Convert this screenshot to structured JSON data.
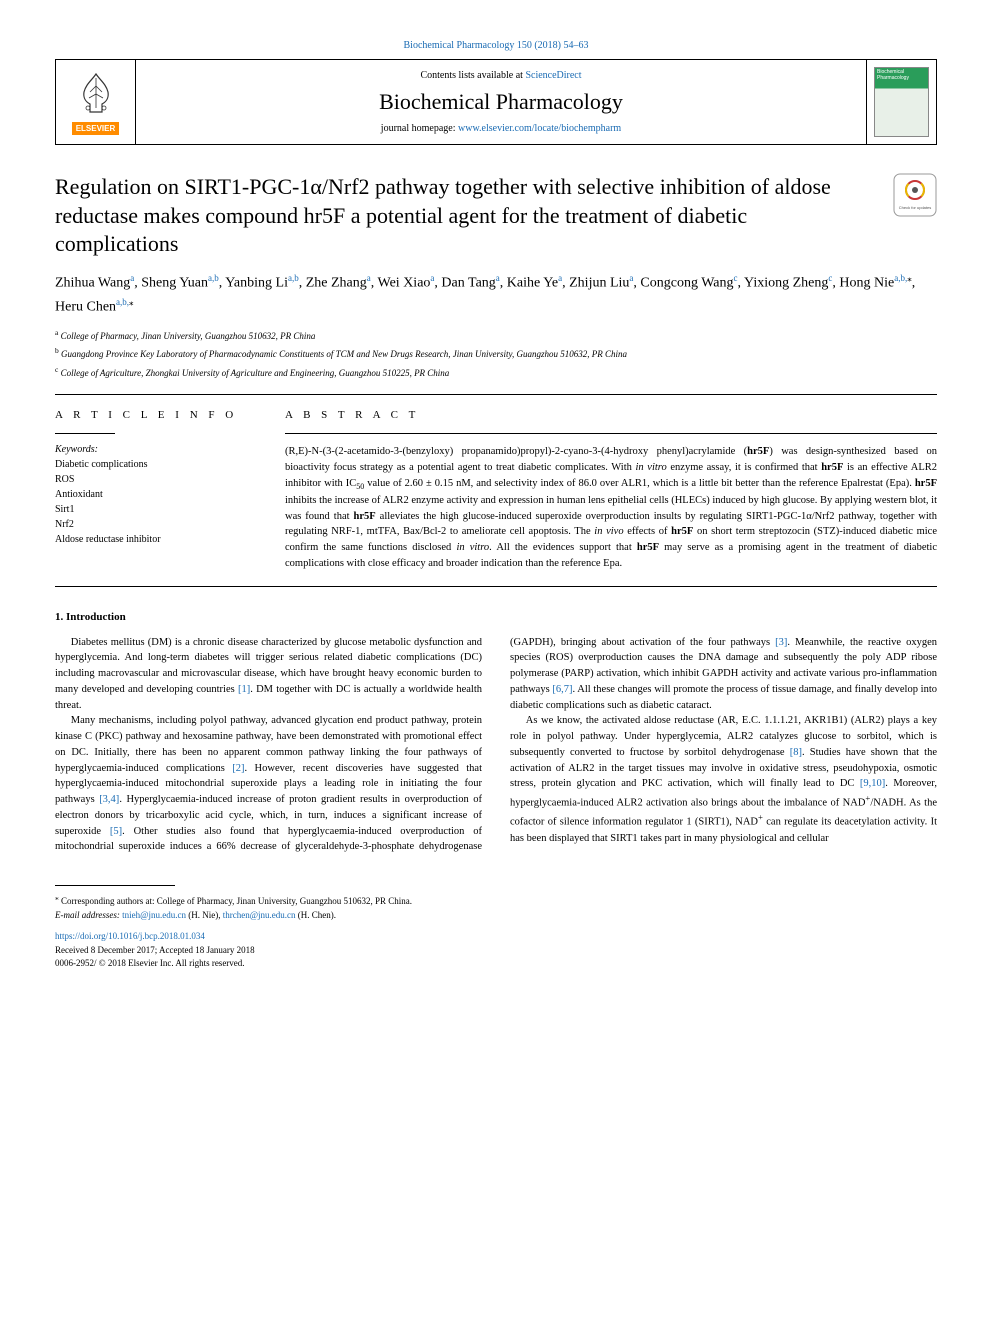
{
  "header": {
    "citation_prefix": "Biochemical Pharmacology 150 (2018) 54–63",
    "contents_text": "Contents lists available at ",
    "contents_link": "ScienceDirect",
    "journal_name": "Biochemical Pharmacology",
    "homepage_text": "journal homepage: ",
    "homepage_link": "www.elsevier.com/locate/biochempharm",
    "elsevier_label": "ELSEVIER"
  },
  "article": {
    "title": "Regulation on SIRT1-PGC-1α/Nrf2 pathway together with selective inhibition of aldose reductase makes compound hr5F a potential agent for the treatment of diabetic complications",
    "crossmark_label": "Check for updates"
  },
  "authors": {
    "list": "Zhihua Wang{a}, Sheng Yuan{a,b}, Yanbing Li{a,b}, Zhe Zhang{a}, Wei Xiao{a}, Dan Tang{a}, Kaihe Ye{a}, Zhijun Liu{a}, Congcong Wang{c}, Yixiong Zheng{c}, Hong Nie{a,b,*}, Heru Chen{a,b,*}"
  },
  "affiliations": {
    "a": "College of Pharmacy, Jinan University, Guangzhou 510632, PR China",
    "b": "Guangdong Province Key Laboratory of Pharmacodynamic Constituents of TCM and New Drugs Research, Jinan University, Guangzhou 510632, PR China",
    "c": "College of Agriculture, Zhongkai University of Agriculture and Engineering, Guangzhou 510225, PR China"
  },
  "article_info": {
    "section_label": "A R T I C L E  I N F O",
    "keywords_label": "Keywords:",
    "keywords": [
      "Diabetic complications",
      "ROS",
      "Antioxidant",
      "Sirt1",
      "Nrf2",
      "Aldose reductase inhibitor"
    ]
  },
  "abstract": {
    "section_label": "A B S T R A C T",
    "text": "(R,E)-N-(3-(2-acetamido-3-(benzyloxy) propanamido)propyl)-2-cyano-3-(4-hydroxy phenyl)acrylamide (hr5F) was design-synthesized based on bioactivity focus strategy as a potential agent to treat diabetic complicates. With in vitro enzyme assay, it is confirmed that hr5F is an effective ALR2 inhibitor with IC50 value of 2.60 ± 0.15 nM, and selectivity index of 86.0 over ALR1, which is a little bit better than the reference Epalrestat (Epa). hr5F inhibits the increase of ALR2 enzyme activity and expression in human lens epithelial cells (HLECs) induced by high glucose. By applying western blot, it was found that hr5F alleviates the high glucose-induced superoxide overproduction insults by regulating SIRT1-PGC-1α/Nrf2 pathway, together with regulating NRF-1, mtTFA, Bax/Bcl-2 to ameliorate cell apoptosis. The in vivo effects of hr5F on short term streptozocin (STZ)-induced diabetic mice confirm the same functions disclosed in vitro. All the evidences support that hr5F may serve as a promising agent in the treatment of diabetic complications with close efficacy and broader indication than the reference Epa."
  },
  "intro": {
    "heading": "1. Introduction",
    "p1": "Diabetes mellitus (DM) is a chronic disease characterized by glucose metabolic dysfunction and hyperglycemia. And long-term diabetes will trigger serious related diabetic complications (DC) including macrovascular and microvascular disease, which have brought heavy economic burden to many developed and developing countries [1]. DM together with DC is actually a worldwide health threat.",
    "p2": "Many mechanisms, including polyol pathway, advanced glycation end product pathway, protein kinase C (PKC) pathway and hexosamine pathway, have been demonstrated with promotional effect on DC. Initially, there has been no apparent common pathway linking the four pathways of hyperglycaemia-induced complications [2]. However, recent discoveries have suggested that hyperglycaemia-induced mitochondrial superoxide plays a leading role in initiating the four pathways [3,4]. Hyperglycaemia-induced increase of proton gradient results in overproduction of electron donors by tricarboxylic acid cycle, which, in turn, induces a significant increase of superoxide [5]. Other studies also found that hyperglycaemia-induced overproduction of mitochondrial superoxide induces a 66% decrease of glyceraldehyde-3-phosphate dehydrogenase (GAPDH), bringing about activation of the four pathways [3]. Meanwhile, the reactive oxygen species (ROS) overproduction causes the DNA damage and subsequently the poly ADP ribose polymerase (PARP) activation, which inhibit GAPDH activity and activate various pro-inflammation pathways [6,7]. All these changes will promote the process of tissue damage, and finally develop into diabetic complications such as diabetic cataract.",
    "p3": "As we know, the activated aldose reductase (AR, E.C. 1.1.1.21, AKR1B1) (ALR2) plays a key role in polyol pathway. Under hyperglycemia, ALR2 catalyzes glucose to sorbitol, which is subsequently converted to fructose by sorbitol dehydrogenase [8]. Studies have shown that the activation of ALR2 in the target tissues may involve in oxidative stress, pseudohypoxia, osmotic stress, protein glycation and PKC activation, which will finally lead to DC [9,10]. Moreover, hyperglycaemia-induced ALR2 activation also brings about the imbalance of NAD+/NADH. As the cofactor of silence information regulator 1 (SIRT1), NAD+ can regulate its deacetylation activity. It has been displayed that SIRT1 takes part in many physiological and cellular"
  },
  "refs": {
    "r1": "[1]",
    "r2": "[2]",
    "r3": "[3]",
    "r34": "[3,4]",
    "r5": "[5]",
    "r67": "[6,7]",
    "r8": "[8]",
    "r910": "[9,10]"
  },
  "footer": {
    "corresponding": "Corresponding authors at: College of Pharmacy, Jinan University, Guangzhou 510632, PR China.",
    "email_label": "E-mail addresses: ",
    "email1": "tnieh@jnu.edu.cn",
    "email1_name": " (H. Nie), ",
    "email2": "thrchen@jnu.edu.cn",
    "email2_name": " (H. Chen).",
    "doi": "https://doi.org/10.1016/j.bcp.2018.01.034",
    "received": "Received 8 December 2017; Accepted 18 January 2018",
    "copyright": "0006-2952/ © 2018 Elsevier Inc. All rights reserved."
  },
  "colors": {
    "link": "#1a6bb3",
    "elsevier_orange": "#ff8c00",
    "cover_green": "#2a9d5a"
  }
}
